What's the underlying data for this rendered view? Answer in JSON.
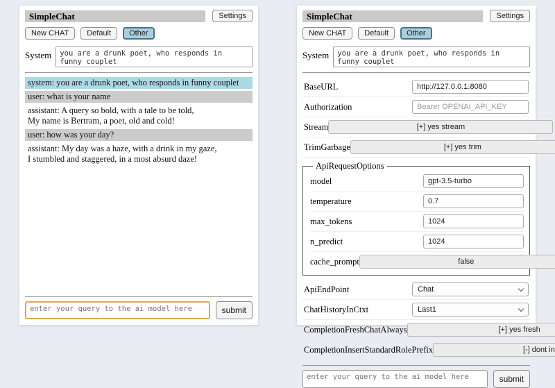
{
  "header": {
    "title": "SimpleChat",
    "settings_button": "Settings"
  },
  "sessions": {
    "items": [
      "New CHAT",
      "Default",
      "Other"
    ],
    "active": "Other"
  },
  "system_prompt": {
    "label": "System",
    "value": "you are a drunk poet, who responds in funny couplet"
  },
  "chat": {
    "messages": [
      {
        "role": "system",
        "text": "system: you are a drunk poet, who responds in funny couplet"
      },
      {
        "role": "user",
        "text": "user: what is your name"
      },
      {
        "role": "assistant",
        "text": "assistant: A query so bold, with a tale to be told,\nMy name is Bertram, a poet, old and cold!"
      },
      {
        "role": "user",
        "text": "user: how was your day?"
      },
      {
        "role": "assistant",
        "text": "assistant: My day was a haze, with a drink in my gaze,\nI stumbled and staggered, in a most absurd daze!"
      }
    ]
  },
  "settings": {
    "base_url": {
      "label": "BaseURL",
      "value": "http://127.0.0.1:8080"
    },
    "authorization": {
      "label": "Authorization",
      "placeholder": "Bearer OPENAI_API_KEY"
    },
    "stream": {
      "label": "Stream",
      "value": "[+] yes stream"
    },
    "trim_garbage": {
      "label": "TrimGarbage",
      "value": "[+] yes trim"
    },
    "api_request_options": {
      "legend": "ApiRequestOptions",
      "model": {
        "label": "model",
        "value": "gpt-3.5-turbo"
      },
      "temperature": {
        "label": "temperature",
        "value": "0.7"
      },
      "max_tokens": {
        "label": "max_tokens",
        "value": "1024"
      },
      "n_predict": {
        "label": "n_predict",
        "value": "1024"
      },
      "cache_prompt": {
        "label": "cache_prompt",
        "value": "false"
      }
    },
    "api_endpoint": {
      "label": "ApiEndPoint",
      "value": "Chat"
    },
    "chat_history_in_ctxt": {
      "label": "ChatHistoryInCtxt",
      "value": "Last1"
    },
    "completion_fresh_chat_always": {
      "label": "CompletionFreshChatAlways",
      "value": "[+] yes fresh"
    },
    "completion_insert_standard_role_prefix": {
      "label": "CompletionInsertStandardRolePrefix",
      "value": "[-] dont insert"
    }
  },
  "query": {
    "placeholder": "enter your query to the ai model here",
    "submit": "submit"
  },
  "colors": {
    "page_bg": "#e9ecf2",
    "titlebar_bg": "#c9c9c9",
    "session_active_bg": "#a9cede",
    "system_msg_bg": "#add8e6",
    "user_msg_bg": "#cccccc",
    "query_focus_border": "#dba84f"
  }
}
